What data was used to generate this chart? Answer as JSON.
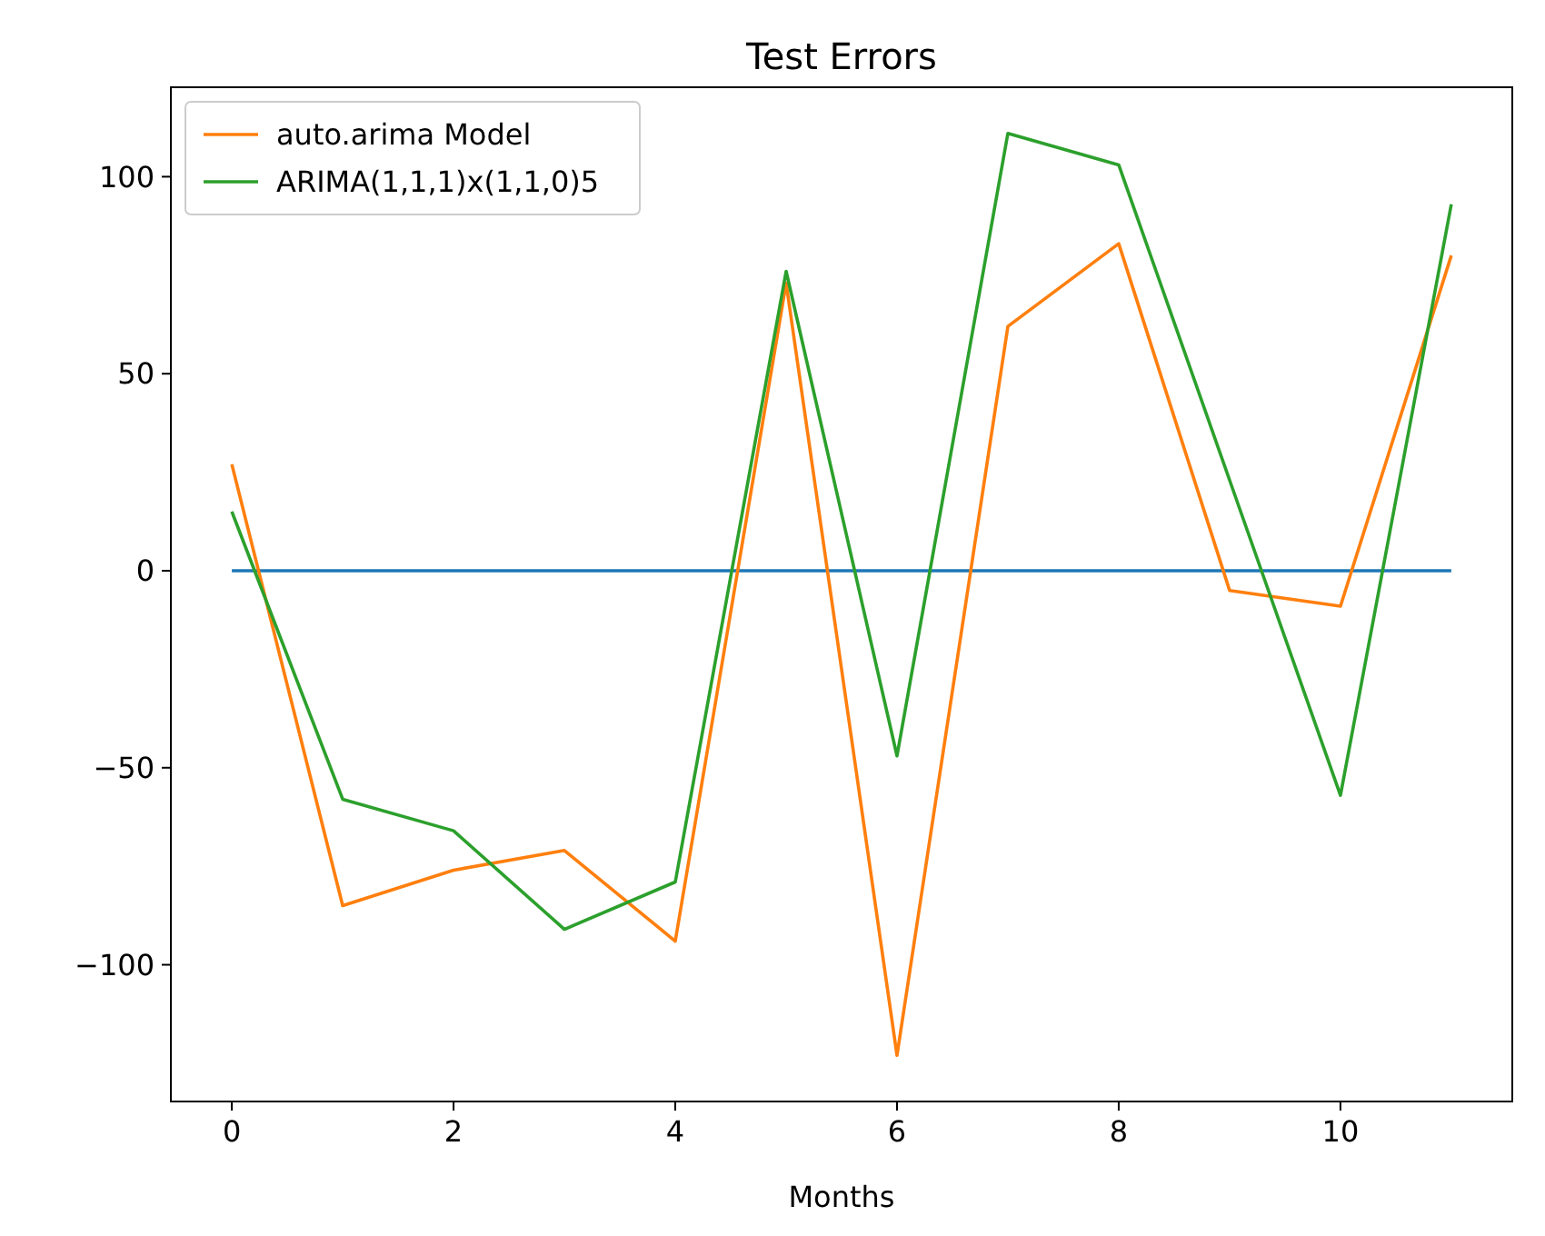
{
  "chart_data": {
    "type": "line",
    "title": "Test Errors",
    "xlabel": "Months",
    "x": [
      0,
      1,
      2,
      3,
      4,
      5,
      6,
      7,
      8,
      9,
      10,
      11
    ],
    "series": [
      {
        "color": "#1f77b4",
        "values": [
          0,
          0,
          0,
          0,
          0,
          0,
          0,
          0,
          0,
          0,
          0,
          0
        ]
      },
      {
        "name": "auto.arima Model",
        "color": "#ff7f0e",
        "values": [
          27,
          -85,
          -76,
          -71,
          -94,
          73,
          -123,
          62,
          83,
          -5,
          -9,
          80
        ]
      },
      {
        "name": "ARIMA(1,1,1)x(1,1,0)5",
        "color": "#2ca02c",
        "values": [
          15,
          -58,
          -66,
          -91,
          -79,
          76,
          -47,
          111,
          103,
          23,
          -57,
          93
        ]
      }
    ],
    "xlim": [
      -0.55,
      11.55
    ],
    "ylim": [
      -134.7,
      122.7
    ],
    "xticks": [
      0,
      2,
      4,
      6,
      8,
      10
    ],
    "yticks": [
      -100,
      -50,
      0,
      50,
      100
    ],
    "legend": "top left",
    "grid": false,
    "marker": "none",
    "line_style": "solid"
  }
}
